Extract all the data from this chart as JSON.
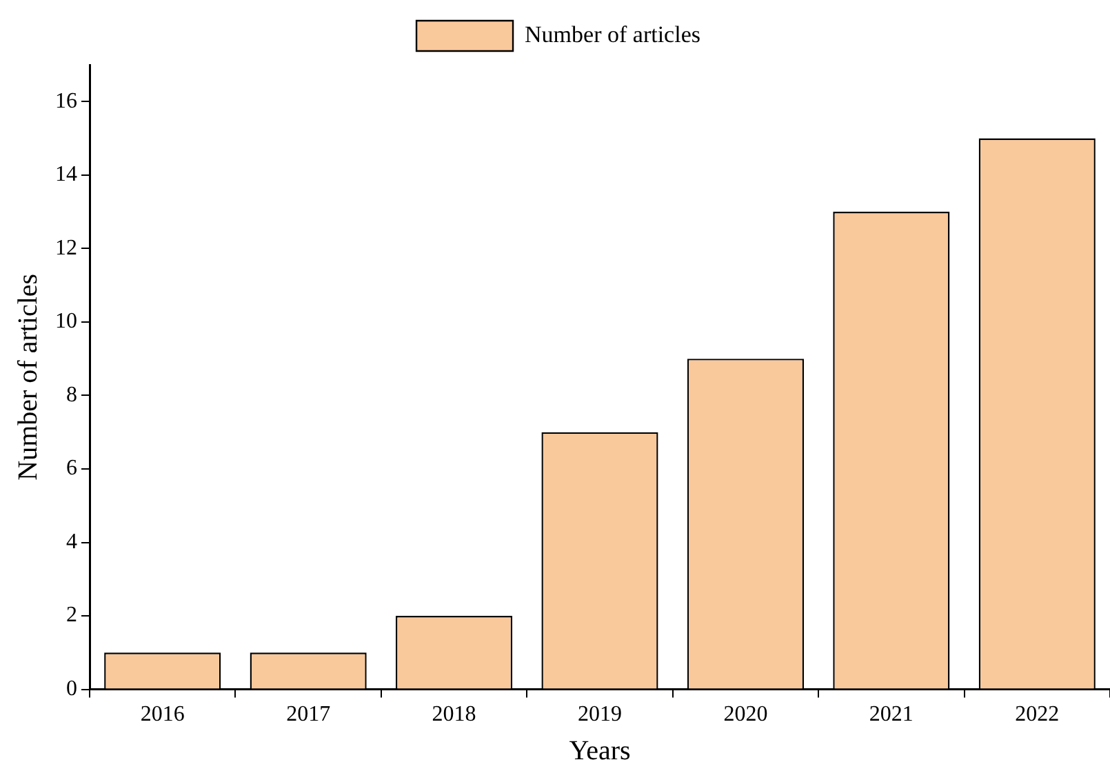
{
  "chart_data": {
    "type": "bar",
    "xlabel": "Years",
    "ylabel": "Number of articles",
    "categories": [
      "2016",
      "2017",
      "2018",
      "2019",
      "2020",
      "2021",
      "2022"
    ],
    "series": [
      {
        "name": "Number of articles",
        "color": "#f9c89b",
        "values": [
          1,
          1,
          2,
          7,
          9,
          13,
          15
        ]
      }
    ],
    "ylim": [
      0,
      17
    ],
    "yticks": [
      0,
      2,
      4,
      6,
      8,
      10,
      12,
      14,
      16
    ],
    "grid": false,
    "legend": "top"
  }
}
